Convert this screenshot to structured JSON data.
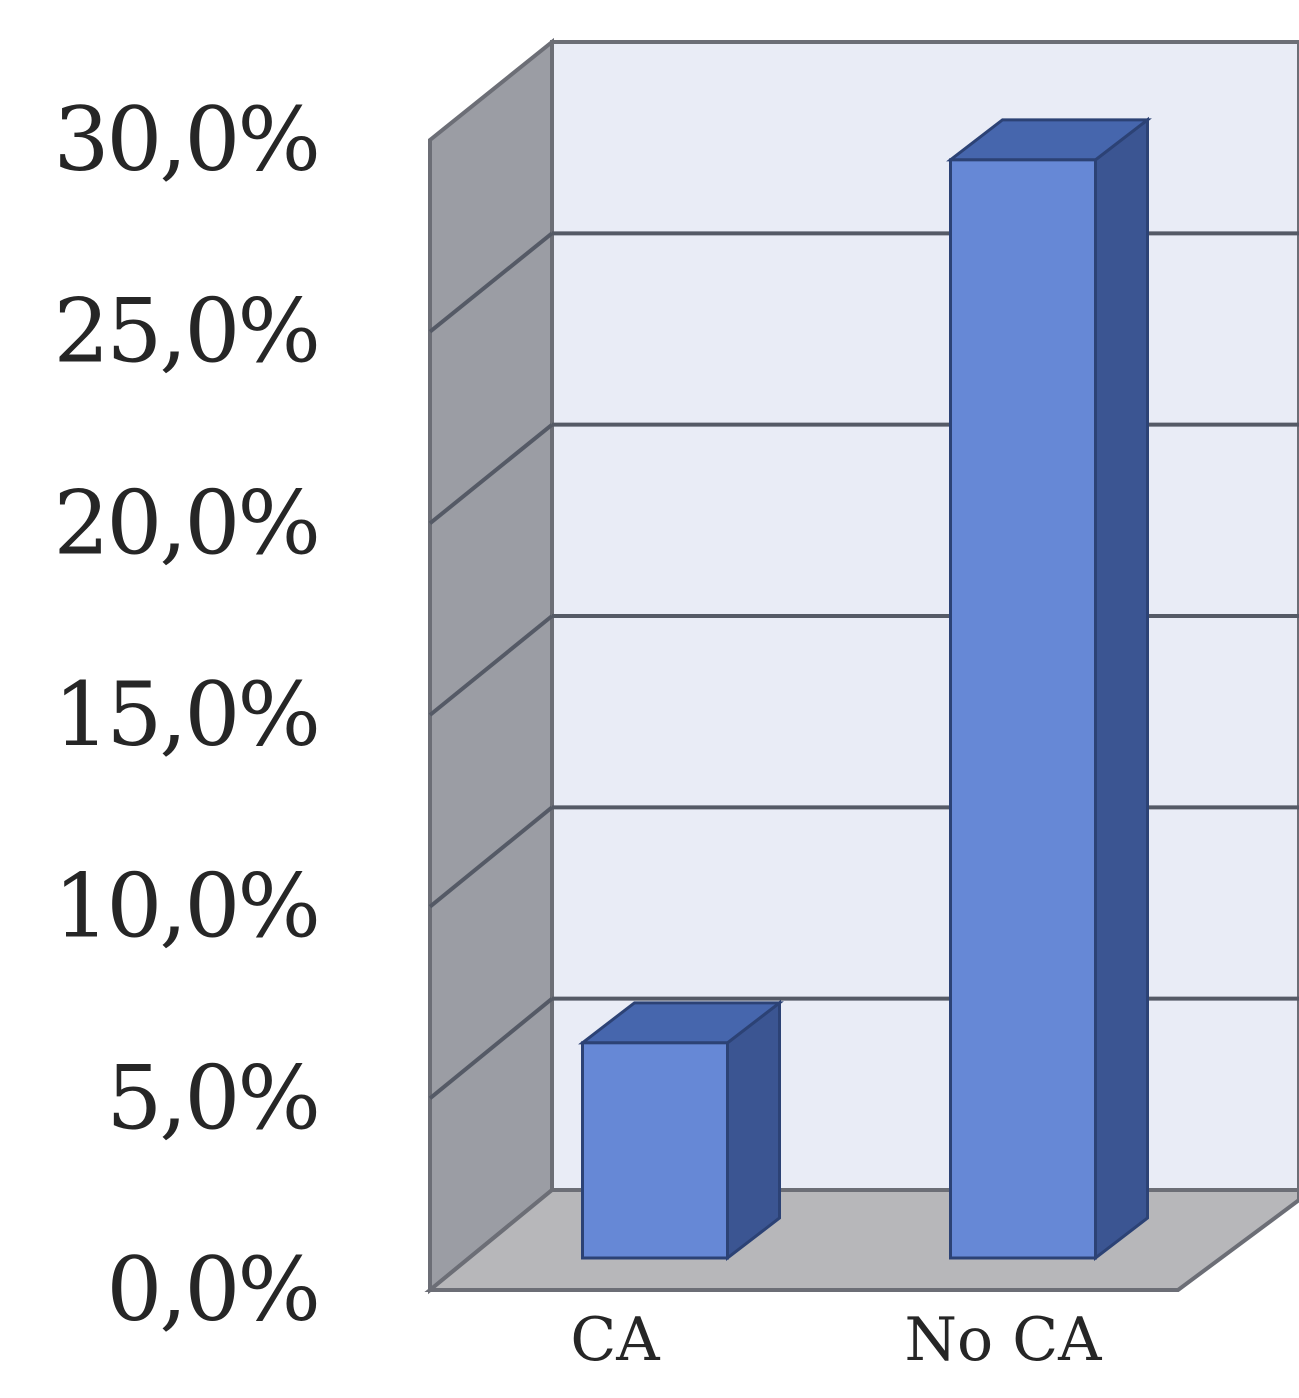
{
  "chart_data": {
    "type": "bar",
    "style": "3d-column",
    "categories": [
      "CA",
      "No CA"
    ],
    "values": [
      5.8,
      29.6
    ],
    "value_unit": "%",
    "title": "",
    "xlabel": "",
    "ylabel": "",
    "ylim": [
      0,
      30
    ],
    "y_ticks": [
      "0,0%",
      "5,0%",
      "10,0%",
      "15,0%",
      "20,0%",
      "25,0%",
      "30,0%"
    ],
    "grid": true,
    "legend": "none",
    "colors": {
      "bar_front": "#6688d6",
      "bar_side": "#3b5592",
      "bar_top": "#4666ad",
      "back_wall": "#e9ecf6",
      "side_wall": "#9a9ca3",
      "floor": "#b7b7ba",
      "gridline": "#555a66"
    }
  }
}
